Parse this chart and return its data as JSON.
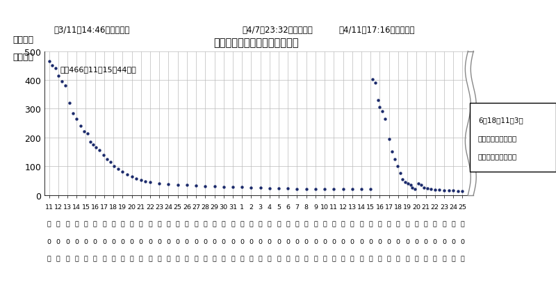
{
  "title": "東北電力管内　停電軒数の推移",
  "ylabel_line1": "停電軒数",
  "ylabel_line2": "（万軒）",
  "ylim": [
    0,
    500
  ],
  "yticks": [
    0,
    100,
    200,
    300,
    400,
    500
  ],
  "dot_color": "#1b2a6b",
  "annotation1": "（3/11　14:46地震発生）",
  "annotation2": "（4/7　23:32地震発生）",
  "annotation3": "（4/11　17:16地震発生）",
  "annotation_max": "最大466（11日15時44分）",
  "note_line1": "6月18日11時3分",
  "note_line2": "復旧作業が可能な地",
  "note_line3": "域の停電は全て復旧",
  "background_color": "#ffffff",
  "x_labels": [
    "11",
    "12",
    "13",
    "14",
    "15",
    "16",
    "17",
    "18",
    "19",
    "20",
    "21",
    "22",
    "23",
    "24",
    "25",
    "26",
    "27",
    "28",
    "29",
    "30",
    "31",
    "1",
    "2",
    "3",
    "4",
    "5",
    "6",
    "7",
    "8",
    "9",
    "10",
    "11",
    "12",
    "13",
    "14",
    "15",
    "16",
    "17",
    "18",
    "19",
    "20",
    "21",
    "22",
    "23",
    "24",
    "25"
  ],
  "series": [
    [
      0,
      466
    ],
    [
      0.3,
      450
    ],
    [
      0.7,
      440
    ],
    [
      1.0,
      415
    ],
    [
      1.4,
      395
    ],
    [
      1.8,
      380
    ],
    [
      2.2,
      320
    ],
    [
      2.6,
      285
    ],
    [
      3.0,
      265
    ],
    [
      3.4,
      240
    ],
    [
      3.8,
      220
    ],
    [
      4.2,
      215
    ],
    [
      4.5,
      185
    ],
    [
      4.8,
      175
    ],
    [
      5.1,
      165
    ],
    [
      5.5,
      155
    ],
    [
      5.9,
      140
    ],
    [
      6.3,
      125
    ],
    [
      6.7,
      115
    ],
    [
      7.1,
      100
    ],
    [
      7.5,
      90
    ],
    [
      8.0,
      80
    ],
    [
      8.5,
      72
    ],
    [
      9.0,
      65
    ],
    [
      9.5,
      58
    ],
    [
      10.0,
      52
    ],
    [
      10.5,
      47
    ],
    [
      11.0,
      44
    ],
    [
      12.0,
      41
    ],
    [
      13.0,
      38
    ],
    [
      14.0,
      36
    ],
    [
      15.0,
      34
    ],
    [
      16.0,
      32
    ],
    [
      17.0,
      31
    ],
    [
      18.0,
      30
    ],
    [
      19.0,
      29
    ],
    [
      20.0,
      28
    ],
    [
      21.0,
      27
    ],
    [
      22.0,
      26
    ],
    [
      23.0,
      25
    ],
    [
      24.0,
      24
    ],
    [
      25.0,
      23
    ],
    [
      26.0,
      22
    ],
    [
      27.0,
      21
    ],
    [
      28.0,
      21
    ],
    [
      29.0,
      20
    ],
    [
      30.0,
      20
    ],
    [
      31.0,
      20
    ],
    [
      32.0,
      20
    ],
    [
      33.0,
      20
    ],
    [
      34.0,
      20
    ],
    [
      35.0,
      20
    ],
    [
      35.2,
      403
    ],
    [
      35.5,
      390
    ],
    [
      35.8,
      330
    ],
    [
      36.0,
      305
    ],
    [
      36.3,
      290
    ],
    [
      36.6,
      265
    ],
    [
      37.0,
      195
    ],
    [
      37.3,
      150
    ],
    [
      37.6,
      125
    ],
    [
      37.9,
      100
    ],
    [
      38.2,
      75
    ],
    [
      38.5,
      55
    ],
    [
      38.8,
      45
    ],
    [
      39.1,
      40
    ],
    [
      39.4,
      35
    ],
    [
      39.5,
      25
    ],
    [
      39.8,
      20
    ],
    [
      40.2,
      40
    ],
    [
      40.5,
      35
    ],
    [
      40.8,
      25
    ],
    [
      41.2,
      22
    ],
    [
      41.6,
      20
    ],
    [
      42.0,
      18
    ],
    [
      42.5,
      17
    ],
    [
      43.0,
      16
    ],
    [
      43.5,
      15
    ],
    [
      44.0,
      15
    ],
    [
      44.5,
      14
    ],
    [
      45.0,
      14
    ]
  ]
}
